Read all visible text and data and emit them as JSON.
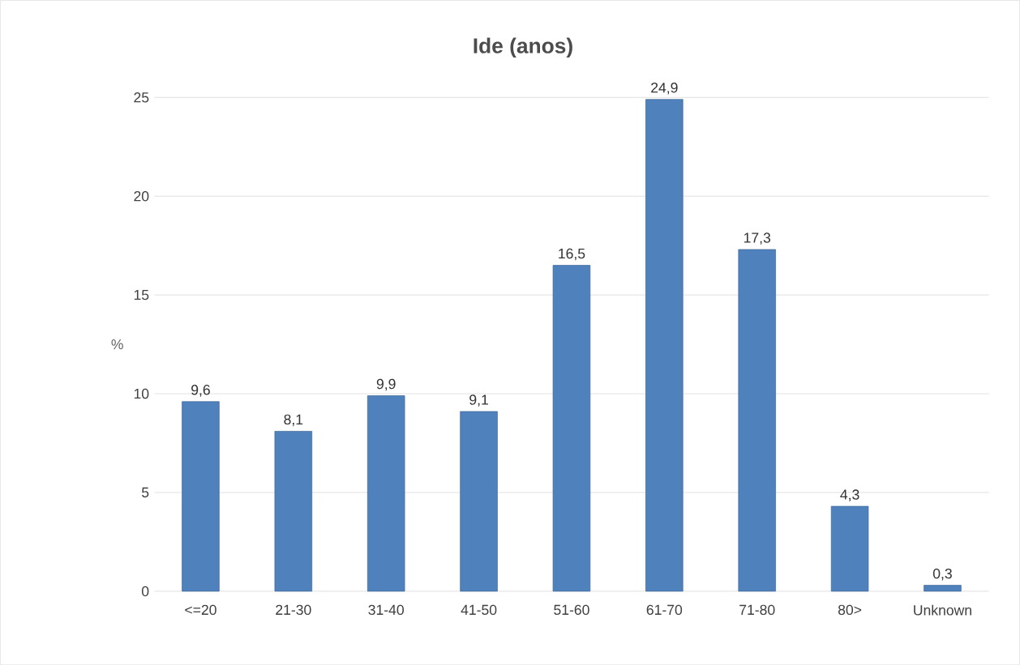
{
  "chart_data": {
    "type": "bar",
    "title": "Ide (anos)",
    "ylabel": "%",
    "categories": [
      "<=20",
      "21-30",
      "31-40",
      "41-50",
      "51-60",
      "61-70",
      "71-80",
      "80>",
      "Unknown"
    ],
    "values": [
      9.6,
      8.1,
      9.9,
      9.1,
      16.5,
      24.9,
      17.3,
      4.3,
      0.3
    ],
    "value_labels": [
      "9,6",
      "8,1",
      "9,9",
      "9,1",
      "16,5",
      "24,9",
      "17,3",
      "4,3",
      "0,3"
    ],
    "color": "#4f81bd",
    "ylim": [
      0,
      25
    ],
    "yticks": [
      0,
      5,
      10,
      15,
      20,
      25
    ],
    "grid": "y"
  }
}
